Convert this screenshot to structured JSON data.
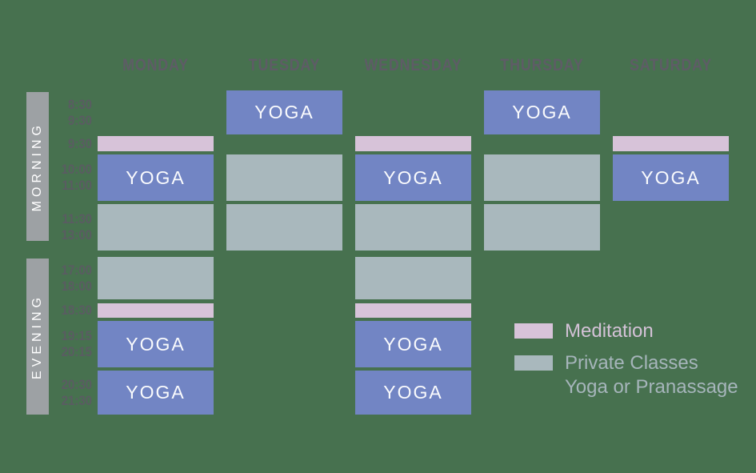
{
  "colors": {
    "page_bg": "#47714F",
    "yoga": "#7285C4",
    "meditation": "#D7C3D9",
    "private": "#A9B8BD",
    "sidebar_bar": "#9DA1A4",
    "day_header_text": "#5E5C66",
    "time_text": "#5A5C62",
    "yoga_text": "#FAFBFD",
    "legend_meditation_text": "#D4C2D7",
    "legend_private_text": "#A6B5BB"
  },
  "chart_data": {
    "type": "table",
    "columns": [
      "MONDAY",
      "TUESDAY",
      "WEDNESDAY",
      "THURSDAY",
      "SATURDAY"
    ],
    "cell_types": {
      "yoga": {
        "label": "YOGA"
      },
      "meditation": {
        "label": "Meditation"
      },
      "private": {
        "label": "Private Classes Yoga or Pranassage"
      }
    },
    "sections": [
      {
        "label": "MORNING",
        "rows": [
          {
            "time_lines": [
              "8:30",
              "9:30"
            ],
            "strip": false,
            "cells": [
              null,
              "yoga",
              null,
              "yoga",
              null
            ]
          },
          {
            "time_lines": [
              "9:30"
            ],
            "strip": true,
            "cells": [
              "meditation",
              null,
              "meditation",
              null,
              "meditation"
            ]
          },
          {
            "time_lines": [
              "10:00",
              "11:00"
            ],
            "strip": false,
            "cells": [
              "yoga",
              "private",
              "yoga",
              "private",
              "yoga"
            ]
          },
          {
            "time_lines": [
              "11:30",
              "13:00"
            ],
            "strip": false,
            "cells": [
              "private",
              "private",
              "private",
              "private",
              null
            ]
          }
        ]
      },
      {
        "label": "EVENING",
        "rows": [
          {
            "time_lines": [
              "17:00",
              "18:00"
            ],
            "strip": false,
            "cells": [
              "private",
              null,
              "private",
              null,
              null
            ]
          },
          {
            "time_lines": [
              "18:30"
            ],
            "strip": true,
            "cells": [
              "meditation",
              null,
              "meditation",
              null,
              null
            ]
          },
          {
            "time_lines": [
              "19:15",
              "20:15"
            ],
            "strip": false,
            "cells": [
              "yoga",
              null,
              "yoga",
              null,
              null
            ]
          },
          {
            "time_lines": [
              "20:30",
              "21:30"
            ],
            "strip": false,
            "cells": [
              "yoga",
              null,
              "yoga",
              null,
              null
            ]
          }
        ]
      }
    ]
  },
  "legend": {
    "items": [
      {
        "type": "meditation",
        "lines": [
          "Meditation"
        ]
      },
      {
        "type": "private",
        "lines": [
          "Private Classes",
          "Yoga or Pranassage"
        ]
      }
    ]
  }
}
